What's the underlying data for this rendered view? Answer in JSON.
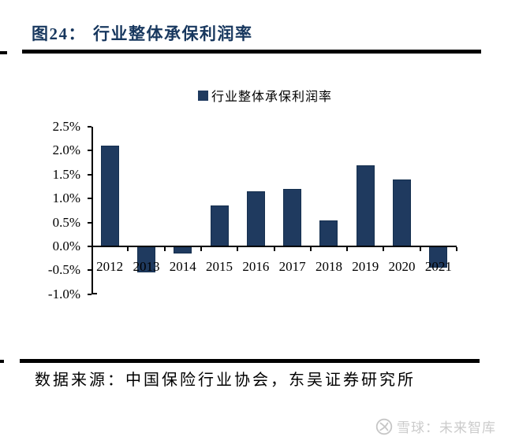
{
  "figure": {
    "label": "图24：",
    "title": "行业整体承保利润率"
  },
  "legend": {
    "label": "行业整体承保利润率",
    "swatch_color": "#1F3A5F"
  },
  "chart_data": {
    "type": "bar",
    "title": "行业整体承保利润率",
    "categories": [
      "2012",
      "2013",
      "2014",
      "2015",
      "2016",
      "2017",
      "2018",
      "2019",
      "2020",
      "2021"
    ],
    "values": [
      2.1,
      -0.55,
      -0.15,
      0.85,
      1.15,
      1.2,
      0.55,
      1.7,
      1.4,
      -0.45
    ],
    "unit": "%",
    "ylim": [
      -1.0,
      2.5
    ],
    "ytick_step": 0.5,
    "ytick_labels": [
      "2.5%",
      "2.0%",
      "1.5%",
      "1.0%",
      "0.5%",
      "0.0%",
      "-0.5%",
      "-1.0%"
    ],
    "bar_color": "#1F3A5F",
    "bar_border_color": "#16304F",
    "axis_color": "#000000",
    "grid": false,
    "legend_position": "top-center"
  },
  "source": {
    "text": "数据来源：中国保险行业协会，东吴证券研究所"
  },
  "watermark": {
    "logo": "xueqiu-logo",
    "text": "雪球：未来智库",
    "color": "#CBCBCB"
  },
  "colors": {
    "title_navy": "#17375E",
    "bar_navy": "#1F3A5F",
    "rule_black": "#000000",
    "watermark_gray": "#CBCBCB"
  }
}
